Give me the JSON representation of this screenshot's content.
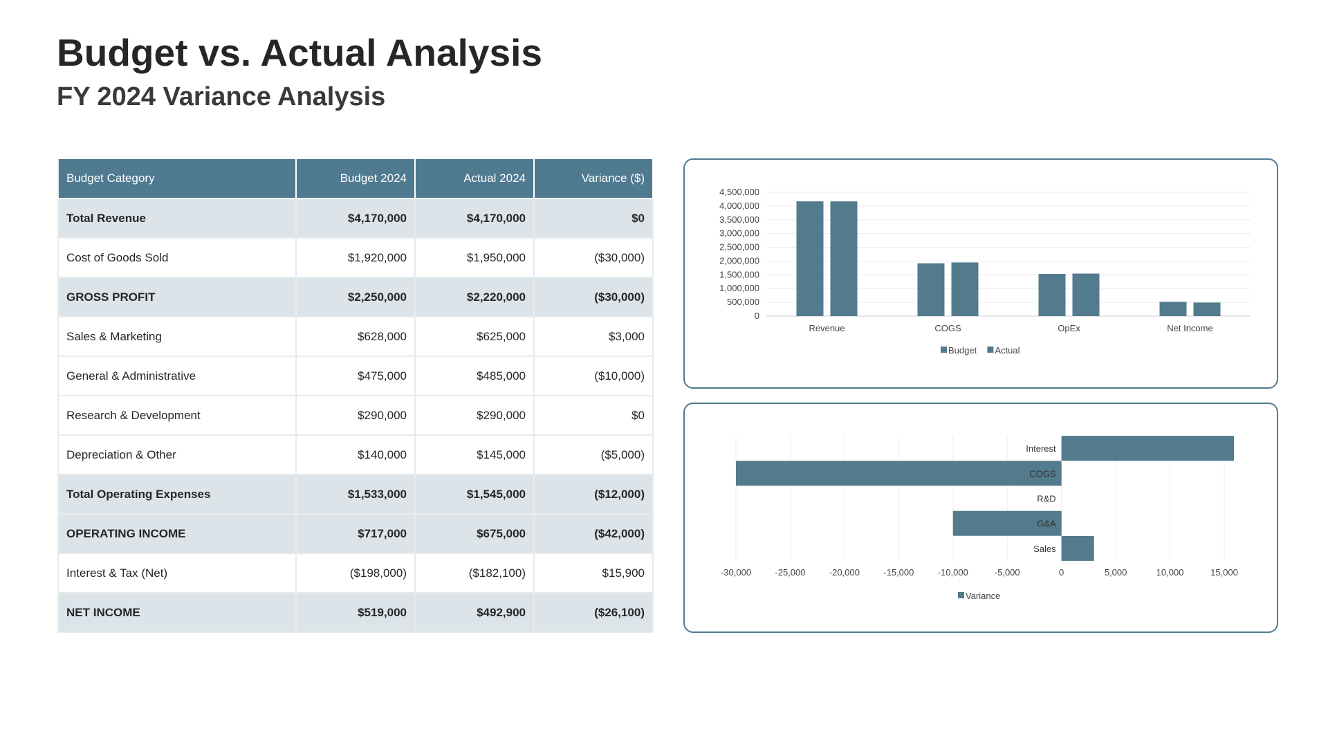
{
  "header": {
    "title": "Budget vs. Actual Analysis",
    "subtitle": "FY 2024 Variance Analysis"
  },
  "table": {
    "columns": [
      "Budget Category",
      "Budget 2024",
      "Actual 2024",
      "Variance ($)"
    ],
    "rows": [
      {
        "category": "Total Revenue",
        "budget": "$4,170,000",
        "actual": "$4,170,000",
        "variance": "$0"
      },
      {
        "category": "Cost of Goods Sold",
        "budget": "$1,920,000",
        "actual": "$1,950,000",
        "variance": "($30,000)"
      },
      {
        "category": "GROSS PROFIT",
        "budget": "$2,250,000",
        "actual": "$2,220,000",
        "variance": "($30,000)"
      },
      {
        "category": "Sales & Marketing",
        "budget": "$628,000",
        "actual": "$625,000",
        "variance": "$3,000"
      },
      {
        "category": "General & Administrative",
        "budget": "$475,000",
        "actual": "$485,000",
        "variance": "($10,000)"
      },
      {
        "category": "Research & Development",
        "budget": "$290,000",
        "actual": "$290,000",
        "variance": "$0"
      },
      {
        "category": "Depreciation & Other",
        "budget": "$140,000",
        "actual": "$145,000",
        "variance": "($5,000)"
      },
      {
        "category": "Total Operating Expenses",
        "budget": "$1,533,000",
        "actual": "$1,545,000",
        "variance": "($12,000)"
      },
      {
        "category": "OPERATING INCOME",
        "budget": "$717,000",
        "actual": "$675,000",
        "variance": "($42,000)"
      },
      {
        "category": "Interest & Tax (Net)",
        "budget": "($198,000)",
        "actual": "($182,100)",
        "variance": "$15,900"
      },
      {
        "category": "NET INCOME",
        "budget": "$519,000",
        "actual": "$492,900",
        "variance": "($26,100)"
      }
    ]
  },
  "colors": {
    "accent": "#4f7a90",
    "shaded_row": "#dce4e9",
    "series": "#527b8d"
  },
  "chart_data": [
    {
      "type": "bar",
      "orientation": "vertical",
      "categories": [
        "Revenue",
        "COGS",
        "OpEx",
        "Net Income"
      ],
      "series": [
        {
          "name": "Budget",
          "values": [
            4170000,
            1920000,
            1533000,
            519000
          ]
        },
        {
          "name": "Actual",
          "values": [
            4170000,
            1950000,
            1545000,
            492900
          ]
        }
      ],
      "ylim": [
        0,
        4500000
      ],
      "yticks": [
        0,
        500000,
        1000000,
        1500000,
        2000000,
        2500000,
        3000000,
        3500000,
        4000000,
        4500000
      ],
      "ytick_labels": [
        "0",
        "500,000",
        "1,000,000",
        "1,500,000",
        "2,000,000",
        "2,500,000",
        "3,000,000",
        "3,500,000",
        "4,000,000",
        "4,500,000"
      ],
      "grid": true,
      "legend": "bottom"
    },
    {
      "type": "bar",
      "orientation": "horizontal",
      "categories": [
        "Interest",
        "COGS",
        "R&D",
        "G&A",
        "Sales"
      ],
      "series": [
        {
          "name": "Variance",
          "values": [
            15900,
            -30000,
            0,
            -10000,
            3000
          ]
        }
      ],
      "xlim": [
        -30000,
        15000
      ],
      "xticks": [
        -30000,
        -25000,
        -20000,
        -15000,
        -10000,
        -5000,
        0,
        5000,
        10000,
        15000
      ],
      "xtick_labels": [
        "-30,000",
        "-25,000",
        "-20,000",
        "-15,000",
        "-10,000",
        "-5,000",
        "0",
        "5,000",
        "10,000",
        "15,000"
      ],
      "grid": true,
      "legend": "bottom"
    }
  ]
}
